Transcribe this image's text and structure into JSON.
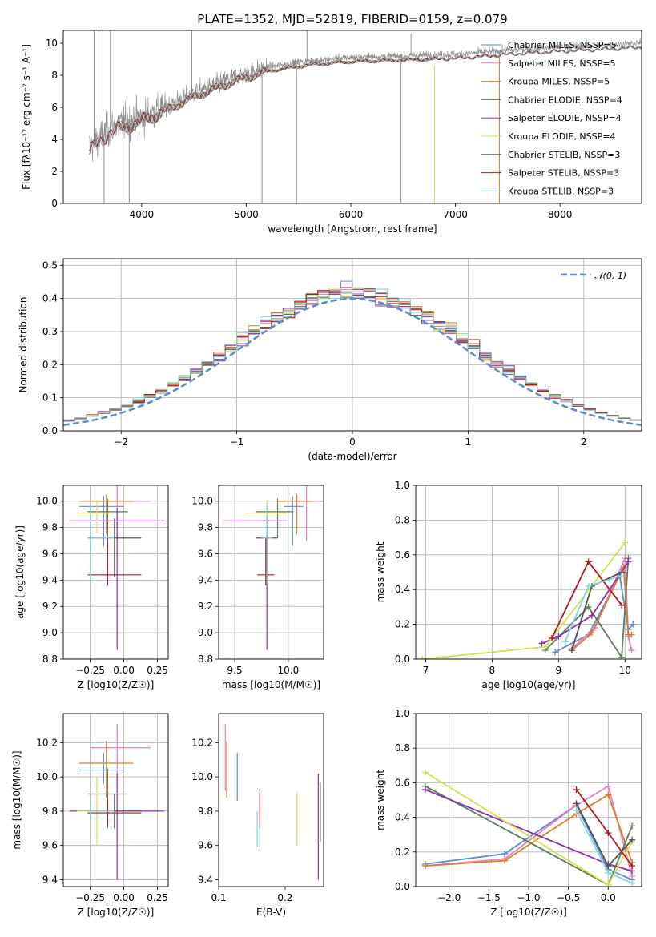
{
  "title": "PLATE=1352, MJD=52819, FIBERID=0159, z=0.079",
  "colors": {
    "Chabrier MILES": "#5b8ad6",
    "Salpeter MILES": "#e87fc6",
    "Kroupa MILES": "#e07d22",
    "Chabrier ELODIE": "#5b7f5a",
    "Salpeter ELODIE": "#8e2fb5",
    "Kroupa ELODIE": "#d6e04a",
    "Chabrier STELIB": "#555555",
    "Salpeter STELIB": "#b5151c",
    "Kroupa STELIB": "#7fd6e0"
  },
  "chart_data": [
    {
      "id": "spectrum",
      "type": "line",
      "title": "PLATE=1352, MJD=52819, FIBERID=0159, z=0.079",
      "xlabel": "wavelength [Angstrom, rest frame]",
      "ylabel": "Flux [fλ10⁻¹⁷ erg cm⁻² s⁻¹ A⁻¹]",
      "xlim": [
        3250,
        8780
      ],
      "ylim": [
        0,
        10.8
      ],
      "xticks": [
        4000,
        5000,
        6000,
        7000,
        8000
      ],
      "yticks": [
        0,
        2,
        4,
        6,
        8,
        10
      ],
      "grid": false,
      "legend_position": "top-right",
      "legend": [
        "Chabrier MILES, NSSP=5",
        "Salpeter MILES, NSSP=5",
        "Kroupa MILES, NSSP=5",
        "Chabrier ELODIE, NSSP=4",
        "Salpeter ELODIE, NSSP=4",
        "Kroupa ELODIE, NSSP=4",
        "Chabrier STELIB, NSSP=3",
        "Salpeter STELIB, NSSP=3",
        "Kroupa STELIB, NSSP=3"
      ],
      "continuum_knots": [
        [
          3500,
          3.5
        ],
        [
          3700,
          4.7
        ],
        [
          4000,
          5.4
        ],
        [
          4250,
          6.1
        ],
        [
          4500,
          6.9
        ],
        [
          4900,
          7.9
        ],
        [
          5200,
          8.5
        ],
        [
          5600,
          8.9
        ],
        [
          6000,
          9.1
        ],
        [
          6500,
          9.2
        ],
        [
          7000,
          9.3
        ],
        [
          7500,
          9.55
        ],
        [
          8000,
          9.75
        ],
        [
          8500,
          9.9
        ],
        [
          8780,
          10.0
        ]
      ],
      "model_ranges": {
        "MILES": [
          3540,
          7420
        ],
        "ELODIE": [
          3800,
          6800
        ],
        "STELIB": [
          3500,
          8780
        ]
      }
    },
    {
      "id": "residuals",
      "type": "line",
      "xlabel": "(data-model)/error",
      "ylabel": "Normed distribution",
      "xlim": [
        -2.5,
        2.5
      ],
      "ylim": [
        0,
        0.52
      ],
      "xticks": [
        -2,
        -1,
        0,
        1,
        2
      ],
      "yticks": [
        0.0,
        0.1,
        0.2,
        0.3,
        0.4,
        0.5
      ],
      "grid": true,
      "legend": [
        "𝒩(0, 1)"
      ],
      "legend_position": "top-right",
      "bin_width": 0.1,
      "reference": "normal distribution, mean 0, sigma 1"
    },
    {
      "id": "age_vs_Z",
      "type": "scatter",
      "xlabel": "Z [log10(Z/Z☉)]",
      "ylabel": "age  [log10(age/yr)]",
      "xlim": [
        -0.45,
        0.33
      ],
      "ylim": [
        8.8,
        10.12
      ],
      "xticks": [
        -0.25,
        0.0,
        0.25
      ],
      "yticks": [
        8.8,
        9.0,
        9.2,
        9.4,
        9.6,
        9.8,
        10.0
      ],
      "grid": true,
      "points": [
        {
          "model": "Chabrier MILES",
          "x": -0.15,
          "xerr": [
            0.18,
            0.15
          ],
          "y": 9.96,
          "yerr": [
            0.3,
            0.08
          ]
        },
        {
          "model": "Salpeter MILES",
          "x": -0.05,
          "xerr": [
            0.2,
            0.25
          ],
          "y": 10.0,
          "yerr": [
            0.3,
            0.12
          ]
        },
        {
          "model": "Kroupa MILES",
          "x": -0.13,
          "xerr": [
            0.2,
            0.2
          ],
          "y": 10.0,
          "yerr": [
            0.25,
            0.05
          ]
        },
        {
          "model": "Chabrier ELODIE",
          "x": -0.12,
          "xerr": [
            0.15,
            0.15
          ],
          "y": 9.92,
          "yerr": [
            0.2,
            0.1
          ]
        },
        {
          "model": "Salpeter ELODIE",
          "x": -0.05,
          "xerr": [
            0.35,
            0.35
          ],
          "y": 9.85,
          "yerr": [
            0.98,
            0.1
          ]
        },
        {
          "model": "Kroupa ELODIE",
          "x": -0.2,
          "xerr": [
            0.15,
            0.1
          ],
          "y": 9.91,
          "yerr": [
            0.15,
            0.1
          ]
        },
        {
          "model": "Chabrier STELIB",
          "x": -0.07,
          "xerr": [
            0.2,
            0.2
          ],
          "y": 9.72,
          "yerr": [
            0.3,
            0.15
          ]
        },
        {
          "model": "Salpeter STELIB",
          "x": -0.12,
          "xerr": [
            0.15,
            0.25
          ],
          "y": 9.44,
          "yerr": [
            0.08,
            0.28
          ]
        },
        {
          "model": "Kroupa STELIB",
          "x": -0.25,
          "xerr": [
            0.02,
            0.18
          ],
          "y": 9.72,
          "yerr": [
            0.35,
            0.25
          ]
        }
      ]
    },
    {
      "id": "age_vs_mass",
      "type": "scatter",
      "xlabel": "mass [log10(M/M☉)]",
      "ylabel": "",
      "xlim": [
        9.35,
        10.33
      ],
      "ylim": [
        8.8,
        10.12
      ],
      "xticks": [
        9.5,
        10.0
      ],
      "yticks": [
        8.8,
        9.0,
        9.2,
        9.4,
        9.6,
        9.8,
        10.0
      ],
      "grid": true,
      "points": [
        {
          "model": "Chabrier MILES",
          "x": 10.04,
          "xerr": [
            0.08,
            0.1
          ],
          "y": 9.96,
          "yerr": [
            0.3,
            0.08
          ]
        },
        {
          "model": "Salpeter MILES",
          "x": 10.17,
          "xerr": [
            0.25,
            0.2
          ],
          "y": 10.0,
          "yerr": [
            0.3,
            0.12
          ]
        },
        {
          "model": "Kroupa MILES",
          "x": 10.08,
          "xerr": [
            0.2,
            0.15
          ],
          "y": 10.0,
          "yerr": [
            0.25,
            0.05
          ]
        },
        {
          "model": "Chabrier ELODIE",
          "x": 9.9,
          "xerr": [
            0.2,
            0.15
          ],
          "y": 9.92,
          "yerr": [
            0.2,
            0.1
          ]
        },
        {
          "model": "Salpeter ELODIE",
          "x": 9.8,
          "xerr": [
            0.4,
            0.2
          ],
          "y": 9.85,
          "yerr": [
            0.98,
            0.1
          ]
        },
        {
          "model": "Kroupa ELODIE",
          "x": 9.8,
          "xerr": [
            0.2,
            0.2
          ],
          "y": 9.91,
          "yerr": [
            0.15,
            0.1
          ]
        },
        {
          "model": "Chabrier STELIB",
          "x": 9.8,
          "xerr": [
            0.1,
            0.1
          ],
          "y": 9.72,
          "yerr": [
            0.3,
            0.15
          ]
        },
        {
          "model": "Salpeter STELIB",
          "x": 9.79,
          "xerr": [
            0.08,
            0.08
          ],
          "y": 9.44,
          "yerr": [
            0.08,
            0.28
          ]
        },
        {
          "model": "Kroupa STELIB",
          "x": 9.8,
          "xerr": [
            0.05,
            0.05
          ],
          "y": 9.72,
          "yerr": [
            0.35,
            0.25
          ]
        }
      ]
    },
    {
      "id": "weight_vs_age",
      "type": "line",
      "xlabel": "age  [log10(age/yr)]",
      "ylabel": "mass weight",
      "xlim": [
        6.85,
        10.25
      ],
      "ylim": [
        0,
        1.0
      ],
      "xticks": [
        7,
        8,
        9,
        10
      ],
      "yticks": [
        0.0,
        0.2,
        0.4,
        0.6,
        0.8,
        1.0
      ],
      "grid": true,
      "series": [
        {
          "model": "Chabrier MILES",
          "x": [
            8.95,
            9.45,
            9.92,
            10.05,
            10.12
          ],
          "y": [
            0.04,
            0.14,
            0.48,
            0.17,
            0.2
          ]
        },
        {
          "model": "Salpeter MILES",
          "x": [
            9.2,
            9.55,
            10.0,
            10.05,
            10.1
          ],
          "y": [
            0.06,
            0.18,
            0.58,
            0.13,
            0.05
          ]
        },
        {
          "model": "Kroupa MILES",
          "x": [
            9.2,
            9.5,
            9.98,
            10.05,
            10.1
          ],
          "y": [
            0.05,
            0.15,
            0.53,
            0.14,
            0.14
          ]
        },
        {
          "model": "Chabrier ELODIE",
          "x": [
            8.8,
            9.45,
            9.95,
            10.05
          ],
          "y": [
            0.05,
            0.3,
            0.01,
            0.58
          ]
        },
        {
          "model": "Salpeter ELODIE",
          "x": [
            8.75,
            9.0,
            9.5,
            10.05
          ],
          "y": [
            0.09,
            0.13,
            0.25,
            0.56
          ]
        },
        {
          "model": "Kroupa ELODIE",
          "x": [
            6.95,
            8.8,
            10.0
          ],
          "y": [
            0.0,
            0.07,
            0.67
          ]
        },
        {
          "model": "Chabrier STELIB",
          "x": [
            9.2,
            9.5,
            9.95
          ],
          "y": [
            0.05,
            0.42,
            0.5
          ]
        },
        {
          "model": "Salpeter STELIB",
          "x": [
            8.9,
            9.45,
            9.95
          ],
          "y": [
            0.12,
            0.56,
            0.31
          ]
        },
        {
          "model": "Kroupa STELIB",
          "x": [
            9.1,
            9.45,
            9.95
          ],
          "y": [
            0.1,
            0.42,
            0.48
          ]
        }
      ]
    },
    {
      "id": "mass_vs_Z",
      "type": "scatter",
      "xlabel": "Z [log10(Z/Z☉)]",
      "ylabel": "mass [log10(M/M☉)]",
      "xlim": [
        -0.45,
        0.33
      ],
      "ylim": [
        9.36,
        10.37
      ],
      "xticks": [
        -0.25,
        0.0,
        0.25
      ],
      "yticks": [
        9.4,
        9.6,
        9.8,
        10.0,
        10.2
      ],
      "grid": true,
      "points": [
        {
          "model": "Chabrier MILES",
          "x": -0.15,
          "xerr": [
            0.18,
            0.15
          ],
          "y": 10.04,
          "yerr": [
            0.08,
            0.1
          ]
        },
        {
          "model": "Salpeter MILES",
          "x": -0.05,
          "xerr": [
            0.2,
            0.25
          ],
          "y": 10.17,
          "yerr": [
            0.25,
            0.14
          ]
        },
        {
          "model": "Kroupa MILES",
          "x": -0.13,
          "xerr": [
            0.2,
            0.2
          ],
          "y": 10.08,
          "yerr": [
            0.2,
            0.13
          ]
        },
        {
          "model": "Chabrier ELODIE",
          "x": -0.12,
          "xerr": [
            0.15,
            0.15
          ],
          "y": 9.9,
          "yerr": [
            0.2,
            0.15
          ]
        },
        {
          "model": "Salpeter ELODIE",
          "x": -0.05,
          "xerr": [
            0.35,
            0.35
          ],
          "y": 9.8,
          "yerr": [
            0.4,
            0.22
          ]
        },
        {
          "model": "Kroupa ELODIE",
          "x": -0.2,
          "xerr": [
            0.15,
            0.1
          ],
          "y": 9.8,
          "yerr": [
            0.2,
            0.2
          ]
        },
        {
          "model": "Chabrier STELIB",
          "x": -0.07,
          "xerr": [
            0.2,
            0.2
          ],
          "y": 9.8,
          "yerr": [
            0.1,
            0.1
          ]
        },
        {
          "model": "Salpeter STELIB",
          "x": -0.12,
          "xerr": [
            0.15,
            0.25
          ],
          "y": 9.79,
          "yerr": [
            0.08,
            0.08
          ]
        },
        {
          "model": "Kroupa STELIB",
          "x": -0.25,
          "xerr": [
            0.02,
            0.18
          ],
          "y": 9.8,
          "yerr": [
            0.05,
            0.05
          ]
        }
      ]
    },
    {
      "id": "mass_vs_ebv",
      "type": "scatter",
      "xlabel": "E(B-V)",
      "ylabel": "",
      "xlim": [
        0.1,
        0.258
      ],
      "ylim": [
        9.36,
        10.37
      ],
      "xticks": [
        0.1,
        0.2
      ],
      "yticks": [
        9.4,
        9.6,
        9.8,
        10.0,
        10.2
      ],
      "grid": false,
      "points": [
        {
          "model": "Chabrier MILES",
          "x": 0.128,
          "y": 10.04,
          "yerr": [
            0.18,
            0.1
          ]
        },
        {
          "model": "Salpeter MILES",
          "x": 0.11,
          "y": 10.17,
          "yerr": [
            0.25,
            0.14
          ]
        },
        {
          "model": "Kroupa MILES",
          "x": 0.112,
          "y": 10.08,
          "yerr": [
            0.2,
            0.13
          ]
        },
        {
          "model": "Chabrier ELODIE",
          "x": 0.162,
          "y": 9.8,
          "yerr": [
            0.23,
            0.1
          ]
        },
        {
          "model": "Salpeter ELODIE",
          "x": 0.25,
          "y": 9.8,
          "yerr": [
            0.4,
            0.22
          ]
        },
        {
          "model": "Kroupa ELODIE",
          "x": 0.218,
          "y": 9.8,
          "yerr": [
            0.2,
            0.11
          ]
        },
        {
          "model": "Chabrier STELIB",
          "x": 0.253,
          "y": 9.8,
          "yerr": [
            0.18,
            0.17
          ]
        },
        {
          "model": "Salpeter STELIB",
          "x": 0.162,
          "y": 9.8,
          "yerr": [
            0.1,
            0.13
          ]
        },
        {
          "model": "Kroupa STELIB",
          "x": 0.158,
          "y": 9.72,
          "yerr": [
            0.13,
            0.08
          ]
        }
      ]
    },
    {
      "id": "weight_vs_Z",
      "type": "line",
      "xlabel": "Z [log10(Z/Z☉)]",
      "ylabel": "mass weight",
      "xlim": [
        -2.42,
        0.42
      ],
      "ylim": [
        0,
        1.0
      ],
      "xticks": [
        -2.0,
        -1.5,
        -1.0,
        -0.5,
        0.0
      ],
      "yticks": [
        0.0,
        0.2,
        0.4,
        0.6,
        0.8,
        1.0
      ],
      "grid": true,
      "series": [
        {
          "model": "Chabrier MILES",
          "x": [
            -2.3,
            -1.3,
            -0.4,
            0.0,
            0.3
          ],
          "y": [
            0.13,
            0.19,
            0.47,
            0.1,
            0.04
          ]
        },
        {
          "model": "Salpeter MILES",
          "x": [
            -2.3,
            -1.3,
            -0.4,
            0.0,
            0.3
          ],
          "y": [
            0.12,
            0.16,
            0.47,
            0.58,
            0.06
          ]
        },
        {
          "model": "Kroupa MILES",
          "x": [
            -2.3,
            -1.3,
            -0.4,
            0.0,
            0.3
          ],
          "y": [
            0.12,
            0.15,
            0.42,
            0.53,
            0.14
          ]
        },
        {
          "model": "Chabrier ELODIE",
          "x": [
            -2.3,
            0.0,
            0.3
          ],
          "y": [
            0.58,
            0.01,
            0.35
          ]
        },
        {
          "model": "Salpeter ELODIE",
          "x": [
            -2.3,
            0.0,
            0.3
          ],
          "y": [
            0.56,
            0.13,
            0.09
          ]
        },
        {
          "model": "Kroupa ELODIE",
          "x": [
            -2.3,
            0.0,
            0.3
          ],
          "y": [
            0.66,
            0.01,
            0.26
          ]
        },
        {
          "model": "Chabrier STELIB",
          "x": [
            -0.4,
            0.0,
            0.3
          ],
          "y": [
            0.48,
            0.12,
            0.27
          ]
        },
        {
          "model": "Salpeter STELIB",
          "x": [
            -0.4,
            0.0,
            0.3
          ],
          "y": [
            0.56,
            0.31,
            0.12
          ]
        },
        {
          "model": "Kroupa STELIB",
          "x": [
            -0.4,
            0.0,
            0.3
          ],
          "y": [
            0.44,
            0.08,
            0.02
          ]
        }
      ]
    }
  ]
}
